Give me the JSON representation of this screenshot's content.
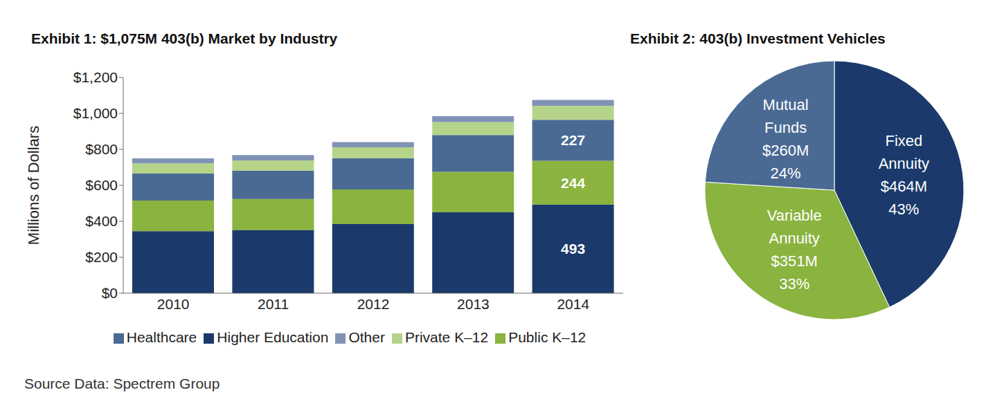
{
  "chart_data": [
    {
      "type": "bar",
      "stacked": true,
      "title": "Exhibit 1: $1,075M 403(b) Market by Industry",
      "y_label": "Millions of Dollars",
      "categories": [
        "2010",
        "2011",
        "2012",
        "2013",
        "2014"
      ],
      "series": [
        {
          "name": "Higher Education",
          "color": "#1b3a6b",
          "values": [
            345,
            352,
            385,
            450,
            493
          ],
          "value_labels": [
            null,
            null,
            null,
            null,
            "493"
          ]
        },
        {
          "name": "Public K–12",
          "color": "#8ab33f",
          "values": [
            170,
            172,
            192,
            225,
            244
          ],
          "value_labels": [
            null,
            null,
            null,
            null,
            "244"
          ]
        },
        {
          "name": "Healthcare",
          "color": "#4a6a94",
          "values": [
            150,
            157,
            173,
            205,
            227
          ],
          "value_labels": [
            null,
            null,
            null,
            null,
            "227"
          ]
        },
        {
          "name": "Private K–12",
          "color": "#b5d48a",
          "values": [
            57,
            57,
            62,
            72,
            78
          ]
        },
        {
          "name": "Other",
          "color": "#8093b5",
          "values": [
            28,
            30,
            28,
            33,
            33
          ]
        }
      ],
      "ylim": [
        0,
        1200
      ],
      "yticks": [
        {
          "value": 0,
          "label": "$0"
        },
        {
          "value": 200,
          "label": "$200"
        },
        {
          "value": 400,
          "label": "$400"
        },
        {
          "value": 600,
          "label": "$600"
        },
        {
          "value": 800,
          "label": "$800"
        },
        {
          "value": 1000,
          "label": "$1,000"
        },
        {
          "value": 1200,
          "label": "$1,200"
        }
      ],
      "grid": false,
      "legend": "bottom",
      "annotations": [
        "Source Data: Spectrem Group"
      ]
    },
    {
      "type": "pie",
      "title": "Exhibit 2: 403(b) Investment Vehicles",
      "categories": [
        "Fixed Annuity",
        "Variable Annuity",
        "Mutual Funds"
      ],
      "values": [
        43,
        33,
        24
      ],
      "value_labels": [
        "43%",
        "33%",
        "24%"
      ],
      "amount_labels": [
        "$464M",
        "$351M",
        "$260M"
      ],
      "colors": [
        "#1b3a6b",
        "#8ab33f",
        "#4a6a94"
      ]
    }
  ]
}
